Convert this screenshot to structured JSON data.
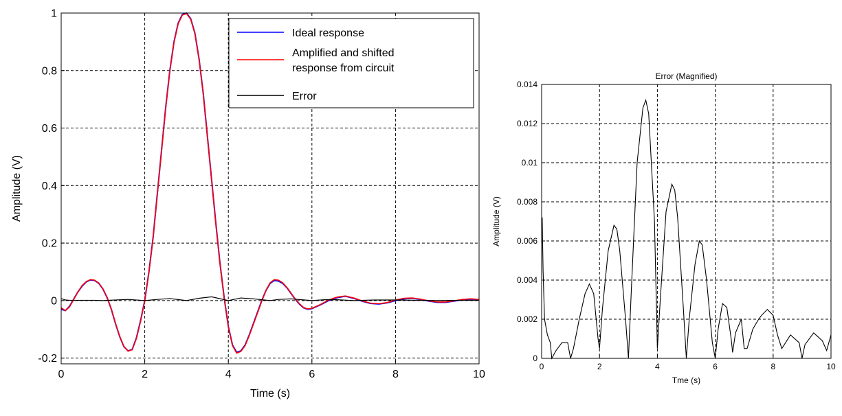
{
  "chart_data": [
    {
      "type": "line",
      "title": "",
      "xlabel": "Time (s)",
      "ylabel": "Amplitude (V)",
      "xlim": [
        0,
        10
      ],
      "ylim": [
        -0.22,
        1.0
      ],
      "xticks": [
        0,
        2,
        4,
        6,
        8,
        10
      ],
      "xtick_labels": [
        "0",
        "2",
        "4",
        "6",
        "8",
        "10"
      ],
      "yticks": [
        -0.2,
        0,
        0.2,
        0.4,
        0.6,
        0.8,
        1
      ],
      "ytick_labels": [
        "-0.2",
        "0",
        "0.2",
        "0.4",
        "0.6",
        "0.8",
        "1"
      ],
      "grid": true,
      "legend_position": "top-right",
      "series": [
        {
          "name": "Ideal response",
          "color": "#0000ff",
          "x": [
            0,
            0.1,
            0.2,
            0.3,
            0.4,
            0.5,
            0.6,
            0.7,
            0.8,
            0.9,
            1.0,
            1.1,
            1.2,
            1.3,
            1.4,
            1.5,
            1.6,
            1.7,
            1.8,
            1.9,
            2.0,
            2.1,
            2.2,
            2.3,
            2.4,
            2.5,
            2.6,
            2.7,
            2.8,
            2.9,
            3.0,
            3.1,
            3.2,
            3.3,
            3.4,
            3.5,
            3.6,
            3.7,
            3.8,
            3.9,
            4.0,
            4.1,
            4.2,
            4.3,
            4.4,
            4.5,
            4.6,
            4.7,
            4.8,
            4.9,
            5.0,
            5.1,
            5.2,
            5.3,
            5.4,
            5.5,
            5.6,
            5.7,
            5.8,
            5.9,
            6.0,
            6.2,
            6.4,
            6.6,
            6.8,
            7.0,
            7.2,
            7.4,
            7.6,
            7.8,
            8.0,
            8.2,
            8.4,
            8.6,
            8.8,
            9.0,
            9.2,
            9.4,
            9.6,
            9.8,
            10.0
          ],
          "y": [
            -0.03,
            -0.035,
            -0.02,
            0.005,
            0.03,
            0.05,
            0.065,
            0.072,
            0.07,
            0.06,
            0.04,
            0.01,
            -0.03,
            -0.08,
            -0.125,
            -0.16,
            -0.175,
            -0.17,
            -0.13,
            -0.07,
            0.0,
            0.1,
            0.22,
            0.37,
            0.52,
            0.67,
            0.8,
            0.9,
            0.965,
            0.995,
            1.0,
            0.98,
            0.93,
            0.84,
            0.72,
            0.57,
            0.42,
            0.27,
            0.13,
            0.01,
            -0.09,
            -0.155,
            -0.18,
            -0.175,
            -0.155,
            -0.12,
            -0.08,
            -0.04,
            0.0,
            0.035,
            0.06,
            0.07,
            0.068,
            0.06,
            0.045,
            0.025,
            0.005,
            -0.012,
            -0.025,
            -0.03,
            -0.028,
            -0.015,
            0.0,
            0.01,
            0.015,
            0.008,
            -0.002,
            -0.01,
            -0.012,
            -0.008,
            0.0,
            0.006,
            0.008,
            0.004,
            -0.002,
            -0.006,
            -0.006,
            -0.002,
            0.003,
            0.005,
            0.003
          ]
        },
        {
          "name": "Amplified and shifted\nresponse from circuit",
          "color": "#ff0000",
          "x": [
            0,
            0.1,
            0.2,
            0.3,
            0.4,
            0.5,
            0.6,
            0.7,
            0.8,
            0.9,
            1.0,
            1.1,
            1.2,
            1.3,
            1.4,
            1.5,
            1.6,
            1.7,
            1.8,
            1.9,
            2.0,
            2.1,
            2.2,
            2.3,
            2.4,
            2.5,
            2.6,
            2.7,
            2.8,
            2.9,
            3.0,
            3.1,
            3.2,
            3.3,
            3.4,
            3.5,
            3.6,
            3.7,
            3.8,
            3.9,
            4.0,
            4.1,
            4.2,
            4.3,
            4.4,
            4.5,
            4.6,
            4.7,
            4.8,
            4.9,
            5.0,
            5.1,
            5.2,
            5.3,
            5.4,
            5.5,
            5.6,
            5.7,
            5.8,
            5.9,
            6.0,
            6.2,
            6.4,
            6.6,
            6.8,
            7.0,
            7.2,
            7.4,
            7.6,
            7.8,
            8.0,
            8.2,
            8.4,
            8.6,
            8.8,
            9.0,
            9.2,
            9.4,
            9.6,
            9.8,
            10.0
          ],
          "y": [
            -0.025,
            -0.035,
            -0.022,
            0.004,
            0.03,
            0.052,
            0.066,
            0.073,
            0.071,
            0.061,
            0.041,
            0.011,
            -0.029,
            -0.079,
            -0.124,
            -0.159,
            -0.176,
            -0.171,
            -0.132,
            -0.072,
            -0.002,
            0.098,
            0.218,
            0.368,
            0.518,
            0.668,
            0.798,
            0.898,
            0.963,
            0.993,
            0.998,
            0.978,
            0.928,
            0.838,
            0.718,
            0.568,
            0.418,
            0.268,
            0.128,
            0.008,
            -0.092,
            -0.157,
            -0.183,
            -0.177,
            -0.157,
            -0.122,
            -0.082,
            -0.042,
            -0.002,
            0.035,
            0.062,
            0.073,
            0.071,
            0.062,
            0.046,
            0.026,
            0.006,
            -0.011,
            -0.024,
            -0.029,
            -0.027,
            -0.014,
            0.002,
            0.012,
            0.016,
            0.009,
            -0.001,
            -0.009,
            -0.011,
            -0.007,
            0.002,
            0.008,
            0.009,
            0.005,
            -0.001,
            -0.005,
            -0.005,
            -0.001,
            0.004,
            0.006,
            0.004
          ]
        },
        {
          "name": "Error",
          "color": "#000000",
          "x": [
            0,
            0.1,
            0.2,
            0.5,
            0.8,
            1.0,
            1.3,
            1.6,
            2.0,
            2.3,
            2.6,
            3.0,
            3.3,
            3.6,
            4.0,
            4.3,
            4.6,
            5.0,
            5.2,
            5.5,
            6.0,
            6.3,
            6.6,
            7.0,
            7.5,
            8.0,
            8.5,
            9.0,
            9.5,
            10.0
          ],
          "y": [
            0.007,
            0.002,
            0.001,
            0.001,
            0.001,
            0.0,
            0.002,
            0.004,
            0.0,
            0.004,
            0.007,
            0.0,
            0.008,
            0.013,
            0.0,
            0.009,
            0.006,
            0.0,
            0.004,
            0.006,
            0.0,
            0.003,
            0.003,
            0.0,
            0.002,
            0.002,
            0.001,
            0.0,
            0.001,
            0.001
          ]
        }
      ]
    },
    {
      "type": "line",
      "title": "Error (Magnified)",
      "xlabel": "Tme (s)",
      "ylabel": "Amplitude (V)",
      "xlim": [
        0,
        10
      ],
      "ylim": [
        0,
        0.014
      ],
      "xticks": [
        0,
        2,
        4,
        6,
        8,
        10
      ],
      "xtick_labels": [
        "0",
        "2",
        "4",
        "6",
        "8",
        "10"
      ],
      "yticks": [
        0,
        0.002,
        0.004,
        0.006,
        0.008,
        0.01,
        0.012,
        0.014
      ],
      "ytick_labels": [
        "0",
        "0.002",
        "0.004",
        "0.006",
        "0.008",
        "0.01",
        "0.012",
        "0.014"
      ],
      "grid": true,
      "series": [
        {
          "color": "#000000",
          "x": [
            0,
            0.02,
            0.05,
            0.1,
            0.2,
            0.3,
            0.35,
            0.5,
            0.7,
            0.9,
            1.0,
            1.1,
            1.3,
            1.5,
            1.65,
            1.8,
            1.95,
            2.0,
            2.1,
            2.3,
            2.5,
            2.6,
            2.7,
            2.9,
            3.0,
            3.1,
            3.3,
            3.5,
            3.6,
            3.7,
            3.9,
            4.0,
            4.1,
            4.3,
            4.5,
            4.6,
            4.7,
            4.9,
            5.0,
            5.1,
            5.3,
            5.45,
            5.55,
            5.7,
            5.9,
            6.0,
            6.1,
            6.25,
            6.4,
            6.55,
            6.6,
            6.7,
            6.9,
            7.0,
            7.1,
            7.3,
            7.5,
            7.6,
            7.8,
            8.0,
            8.15,
            8.3,
            8.6,
            8.9,
            9.0,
            9.1,
            9.4,
            9.7,
            9.85,
            10.0
          ],
          "y": [
            0.0068,
            0.0072,
            0.0045,
            0.002,
            0.0012,
            0.0008,
            0.0,
            0.0004,
            0.0008,
            0.0008,
            0.0,
            0.0005,
            0.002,
            0.0033,
            0.0038,
            0.0033,
            0.001,
            0.0005,
            0.0025,
            0.0055,
            0.0068,
            0.0066,
            0.0055,
            0.002,
            0.0,
            0.0035,
            0.01,
            0.0128,
            0.0132,
            0.0125,
            0.007,
            0.0005,
            0.003,
            0.0075,
            0.0089,
            0.0086,
            0.0072,
            0.0025,
            0.0,
            0.002,
            0.0048,
            0.006,
            0.0058,
            0.004,
            0.0008,
            0.0,
            0.0015,
            0.0028,
            0.0026,
            0.001,
            0.0003,
            0.0013,
            0.002,
            0.0005,
            0.0005,
            0.0015,
            0.002,
            0.0022,
            0.0025,
            0.0022,
            0.0012,
            0.0005,
            0.0012,
            0.0008,
            0.0,
            0.0007,
            0.0013,
            0.0009,
            0.0004,
            0.0012
          ]
        }
      ]
    }
  ]
}
